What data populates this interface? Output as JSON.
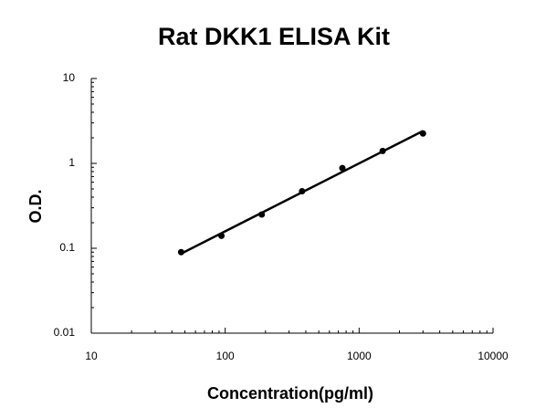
{
  "chart_data": {
    "type": "scatter",
    "title": "Rat DKK1 ELISA Kit",
    "x_label": "Concentration(pg/ml)",
    "y_label": "O.D.",
    "x": [
      46.875,
      93.75,
      187.5,
      375,
      750,
      1500,
      3000
    ],
    "values": [
      0.09,
      0.14,
      0.25,
      0.47,
      0.88,
      1.4,
      2.25
    ],
    "color": "#000000",
    "xlim": [
      10,
      10000
    ],
    "ylim": [
      0.01,
      10
    ],
    "xticks": [
      10,
      100,
      1000,
      10000
    ],
    "yticks": [
      0.01,
      0.1,
      1,
      10
    ],
    "xscale": "log",
    "yscale": "log",
    "trendline": true
  }
}
